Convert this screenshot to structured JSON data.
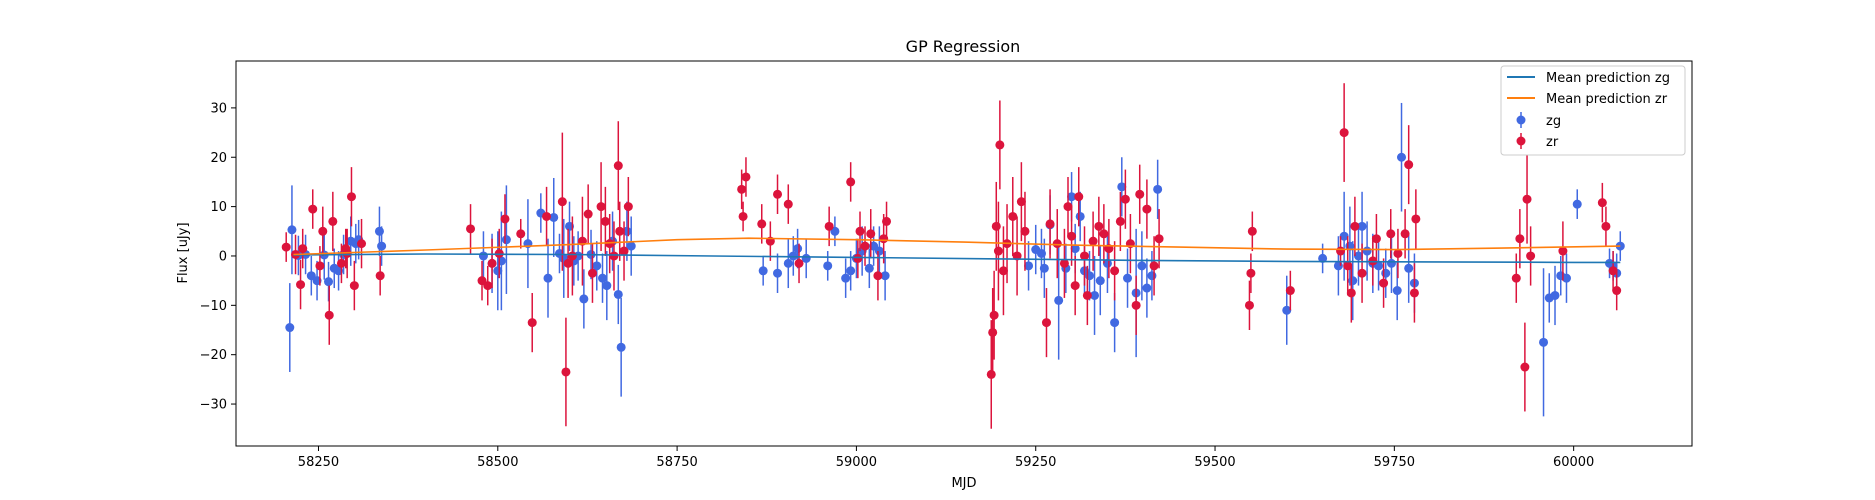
{
  "chart_data": {
    "type": "scatter",
    "title": "GP Regression",
    "xlabel": "MJD",
    "ylabel": "Flux [uJy]",
    "xlim": [
      58135,
      60165
    ],
    "ylim": [
      -38.5,
      39.5
    ],
    "xticks": [
      58250,
      58500,
      58750,
      59000,
      59250,
      59500,
      59750,
      60000
    ],
    "yticks": [
      -30,
      -20,
      -10,
      0,
      10,
      20,
      30
    ],
    "xtick_labels": [
      "58250",
      "58500",
      "58750",
      "59000",
      "59250",
      "59500",
      "59750",
      "60000"
    ],
    "ytick_labels": [
      "−30",
      "−20",
      "−10",
      "0",
      "10",
      "20",
      "30"
    ],
    "grid": false,
    "legend_position": "top-right",
    "colors": {
      "zg_line": "#1f77b4",
      "zr_line": "#ff7f0e",
      "zg_points": "#4169e1",
      "zr_points": "#dc143c"
    },
    "lines": [
      {
        "name": "Mean prediction zg",
        "x": [
          58215,
          58400,
          58600,
          58800,
          59000,
          59200,
          59400,
          59600,
          59800,
          60000,
          60065
        ],
        "y": [
          0.2,
          0.4,
          0.3,
          0.0,
          -0.3,
          -0.6,
          -0.9,
          -1.1,
          -1.2,
          -1.3,
          -1.3
        ]
      },
      {
        "name": "Mean prediction zr",
        "x": [
          58215,
          58400,
          58600,
          58750,
          58850,
          59000,
          59150,
          59300,
          59450,
          59600,
          59750,
          59900,
          60065
        ],
        "y": [
          0.3,
          1.2,
          2.3,
          3.3,
          3.6,
          3.3,
          2.8,
          2.2,
          1.8,
          1.4,
          1.3,
          1.6,
          2.0
        ]
      }
    ],
    "series": [
      {
        "name": "zg",
        "x": [
          58210,
          58213,
          58222,
          58232,
          58240,
          58248,
          58258,
          58264,
          58272,
          58278,
          58285,
          58295,
          58302,
          58306,
          58335,
          58338,
          58480,
          58492,
          58500,
          58505,
          58512,
          58542,
          58560,
          58570,
          58578,
          58586,
          58592,
          58600,
          58606,
          58612,
          58620,
          58630,
          58638,
          58646,
          58652,
          58660,
          58668,
          58672,
          58680,
          58686,
          58870,
          58890,
          58905,
          58912,
          58918,
          58930,
          58960,
          58970,
          58985,
          58992,
          59000,
          59008,
          59018,
          59024,
          59032,
          59040,
          59240,
          59250,
          59258,
          59262,
          59270,
          59282,
          59292,
          59300,
          59305,
          59312,
          59318,
          59325,
          59332,
          59340,
          59350,
          59360,
          59370,
          59378,
          59390,
          59398,
          59405,
          59412,
          59420,
          59600,
          59650,
          59672,
          59680,
          59688,
          59692,
          59700,
          59705,
          59712,
          59720,
          59728,
          59738,
          59746,
          59754,
          59760,
          59770,
          59778,
          59958,
          59966,
          59974,
          59982,
          59990,
          60005,
          60050,
          60055,
          60060,
          60065
        ],
        "y": [
          -14.5,
          5.3,
          0.1,
          0.3,
          -4.0,
          -5.0,
          0.2,
          -5.2,
          -2.5,
          -3.0,
          0.3,
          3.0,
          2.5,
          3.3,
          5.0,
          2.0,
          0.0,
          -1.5,
          -3.0,
          -1.0,
          3.3,
          2.5,
          8.7,
          -4.5,
          7.8,
          0.5,
          -0.5,
          6.0,
          -1.0,
          0.0,
          -8.7,
          0.3,
          -2.0,
          -4.5,
          -6.0,
          3.0,
          -7.8,
          -18.5,
          5.0,
          2.0,
          -3.0,
          -3.5,
          -1.5,
          0.0,
          1.5,
          -0.5,
          -2.0,
          5.0,
          -4.5,
          -3.0,
          -0.5,
          1.0,
          -2.5,
          2.0,
          1.0,
          -4.0,
          -2.0,
          1.3,
          0.5,
          -2.5,
          6.3,
          -9.0,
          -2.5,
          12.0,
          1.5,
          8.0,
          -3.0,
          -4.0,
          -8.0,
          -5.0,
          -1.5,
          -13.5,
          14.0,
          -4.5,
          -7.5,
          -2.0,
          -6.5,
          -4.0,
          13.5,
          -11.0,
          -0.5,
          -2.0,
          4.0,
          2.0,
          -5.0,
          0.0,
          6.0,
          1.0,
          -1.5,
          -2.0,
          -3.5,
          -1.5,
          -7.0,
          20.0,
          -2.5,
          -5.5,
          -17.5,
          -8.5,
          -8.0,
          -4.0,
          -4.5,
          10.5,
          -1.5,
          -2.0,
          -3.5,
          2.0
        ],
        "yerr": [
          9,
          9,
          4,
          4,
          4,
          4,
          5,
          4,
          4,
          4,
          4,
          5,
          4,
          4,
          5,
          4,
          5,
          6,
          8,
          10,
          11,
          9,
          4,
          8,
          8,
          4,
          8,
          5,
          5,
          5,
          6,
          5,
          5,
          5,
          7,
          6,
          6,
          10,
          6,
          6,
          3,
          4,
          5,
          4,
          4,
          4,
          3,
          3,
          4,
          4,
          4,
          5,
          4,
          4,
          5,
          5,
          5,
          5,
          5,
          6,
          6,
          12,
          5,
          5,
          5,
          5,
          5,
          5,
          8,
          7,
          6,
          6,
          6,
          6,
          13,
          7,
          6,
          5,
          6,
          7,
          3,
          6,
          9,
          8,
          8,
          6,
          7,
          6,
          6,
          5,
          5,
          6,
          6,
          11,
          7,
          6,
          15,
          5,
          6,
          4,
          5,
          3,
          3,
          3,
          4,
          3
        ]
      },
      {
        "name": "zr",
        "x": [
          58205,
          58218,
          58225,
          58228,
          58242,
          58252,
          58256,
          58265,
          58270,
          58282,
          58288,
          58290,
          58296,
          58300,
          58310,
          58336,
          58462,
          58478,
          58486,
          58492,
          58502,
          58510,
          58532,
          58548,
          58568,
          58590,
          58595,
          58598,
          58604,
          58618,
          58626,
          58632,
          58644,
          58650,
          58656,
          58662,
          58668,
          58670,
          58676,
          58682,
          58840,
          58842,
          58846,
          58868,
          58880,
          58890,
          58905,
          58920,
          58962,
          58992,
          59002,
          59005,
          59012,
          59020,
          59030,
          59038,
          59042,
          59188,
          59190,
          59192,
          59195,
          59198,
          59200,
          59205,
          59210,
          59218,
          59224,
          59230,
          59235,
          59265,
          59270,
          59280,
          59290,
          59295,
          59300,
          59305,
          59310,
          59318,
          59322,
          59330,
          59338,
          59345,
          59352,
          59360,
          59368,
          59375,
          59382,
          59390,
          59395,
          59405,
          59415,
          59422,
          59548,
          59550,
          59552,
          59605,
          59675,
          59680,
          59685,
          59690,
          59695,
          59705,
          59720,
          59725,
          59735,
          59745,
          59755,
          59765,
          59770,
          59778,
          59780,
          59920,
          59925,
          59932,
          59935,
          59940,
          59985,
          60040,
          60045,
          60055,
          60060
        ],
        "y": [
          1.8,
          0.3,
          -5.8,
          1.5,
          9.5,
          -2.0,
          5.0,
          -12.0,
          7.0,
          -1.5,
          1.5,
          0.5,
          12.0,
          -6.0,
          2.5,
          -4.0,
          5.5,
          -5.0,
          -6.0,
          -1.5,
          0.5,
          7.5,
          4.5,
          -13.5,
          8.0,
          11.0,
          -23.5,
          -1.5,
          0.0,
          3.0,
          8.5,
          -3.5,
          10.0,
          7.0,
          2.5,
          0.0,
          18.3,
          5.0,
          1.0,
          10.0,
          13.5,
          8.0,
          16.0,
          6.5,
          3.0,
          12.5,
          10.5,
          -1.5,
          6.0,
          15.0,
          -0.5,
          5.0,
          2.0,
          4.5,
          -4.0,
          3.5,
          7.0,
          -24.0,
          -15.5,
          -12.0,
          6.0,
          1.0,
          22.5,
          -3.0,
          2.5,
          8.0,
          0.0,
          11.0,
          5.0,
          -13.5,
          6.5,
          2.5,
          -1.5,
          10.0,
          4.0,
          -6.0,
          12.0,
          0.0,
          -8.0,
          3.0,
          6.0,
          4.5,
          1.5,
          -3.0,
          7.0,
          11.5,
          2.5,
          -10.0,
          12.5,
          9.5,
          -2.0,
          3.5,
          -10.0,
          -3.5,
          5.0,
          -7.0,
          1.0,
          25.0,
          -2.0,
          -7.5,
          6.0,
          -3.5,
          -1.0,
          3.5,
          -5.5,
          4.5,
          0.5,
          4.5,
          18.5,
          -7.5,
          7.5,
          -4.5,
          3.5,
          -22.5,
          11.5,
          0.0,
          1.0,
          10.8,
          6.0,
          -3.0,
          -7.0
        ],
        "yerr": [
          3,
          4,
          5,
          4,
          4,
          4,
          5,
          6,
          6,
          4,
          4,
          5,
          6,
          5,
          5,
          4,
          5,
          4,
          4,
          5,
          5,
          5,
          3,
          6,
          6,
          14,
          11,
          7,
          8,
          9,
          6,
          6,
          9,
          7,
          6,
          7,
          9,
          6,
          6,
          6,
          4,
          3,
          4,
          4,
          4,
          4,
          4,
          4,
          4,
          4,
          4,
          4,
          4,
          5,
          5,
          5,
          4,
          11,
          9,
          9,
          9,
          10,
          9,
          9,
          8,
          8,
          8,
          8,
          8,
          7,
          7,
          7,
          7,
          6,
          6,
          6,
          6,
          6,
          6,
          6,
          6,
          6,
          6,
          6,
          6,
          6,
          6,
          6,
          6,
          6,
          6,
          6,
          5,
          4,
          4,
          4,
          3,
          10,
          6,
          6,
          6,
          6,
          5,
          5,
          5,
          5,
          5,
          5,
          8,
          6,
          6,
          5,
          6,
          9,
          9,
          6,
          6,
          4,
          4,
          4,
          4
        ]
      }
    ]
  },
  "legend": {
    "items": [
      "Mean prediction zg",
      "Mean prediction zr",
      "zg",
      "zr"
    ]
  }
}
